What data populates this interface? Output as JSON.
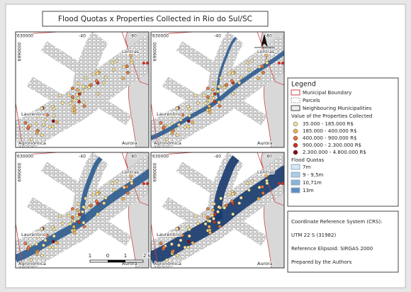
{
  "title": "Flood Quotas x Properties Collected in Rio do Sul/SC",
  "map_labels": {
    "easting_left": "630000",
    "easting_mid": "-40",
    "easting_right": "-80",
    "northing": "6990000",
    "places": [
      "Lontras",
      "Laurentino",
      "Agronômica",
      "Aurora"
    ]
  },
  "scale_bar": [
    "1",
    "0",
    "1",
    "2 km"
  ],
  "legend": {
    "title": "Legend",
    "layers": [
      "Municipal Boundary",
      "Parcels",
      "Neighbouring Municipalities"
    ],
    "value_title": "Value of the Properties Collected",
    "value_classes": [
      {
        "label": "35.000 - 185.000 R$",
        "color": "#f6e39a"
      },
      {
        "label": "185.000 - 400.000 R$",
        "color": "#f2b457"
      },
      {
        "label": "400.000 - 900.000 R$",
        "color": "#e6763c"
      },
      {
        "label": "900.000 - 2.300.000 R$",
        "color": "#c93127"
      },
      {
        "label": "2.300.000 - 4.800.000 R$",
        "color": "#86091a"
      }
    ],
    "flood_title": "Flood Quotas",
    "flood_classes": [
      {
        "label": "7m",
        "color": "#d4e8f6"
      },
      {
        "label": "9 - 9,5m",
        "color": "#aacde8"
      },
      {
        "label": "10,71m",
        "color": "#89b3d8"
      },
      {
        "label": "13m",
        "color": "#5d8ec2"
      }
    ]
  },
  "crs": [
    "Coordinate Reference System (CRS):",
    "UTM 22 S (31982)",
    "Reference Elipsoid: SIRGAS 2000",
    "Prepared by the Authors"
  ]
}
